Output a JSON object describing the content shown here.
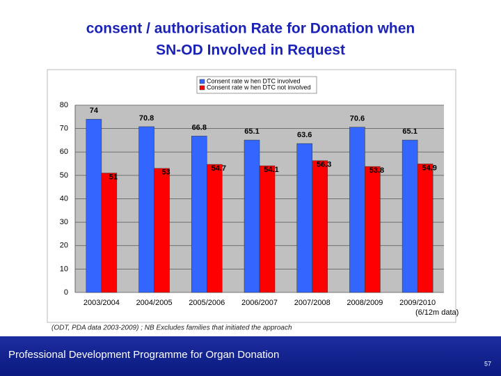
{
  "slide": {
    "title_lines": [
      "consent / authorisation Rate for Donation when",
      "SN-OD Involved in Request"
    ],
    "source_note": "(ODT, PDA data 2003-2009) ; NB Excludes families that initiated the approach",
    "footer": "Professional Development Programme for Organ Donation",
    "page_number": 57
  },
  "chart_data": {
    "type": "bar",
    "categories": [
      "2003/2004",
      "2004/2005",
      "2005/2006",
      "2006/2007",
      "2007/2008",
      "2008/2009",
      "2009/2010\n(6/12m data)"
    ],
    "series": [
      {
        "name": "Consent rate w hen DTC involved",
        "color": "#3366ff",
        "values": [
          74,
          70.8,
          66.8,
          65.1,
          63.6,
          70.6,
          65.1
        ]
      },
      {
        "name": "Consent rate w hen DTC not involved",
        "color": "#ff0000",
        "values": [
          51,
          53,
          54.7,
          54.1,
          56.3,
          53.8,
          54.9
        ]
      }
    ],
    "ylim": [
      0,
      80
    ],
    "yticks": [
      0,
      10,
      20,
      30,
      40,
      50,
      60,
      70,
      80
    ],
    "grid": true,
    "data_labels": true,
    "legend": "top"
  }
}
